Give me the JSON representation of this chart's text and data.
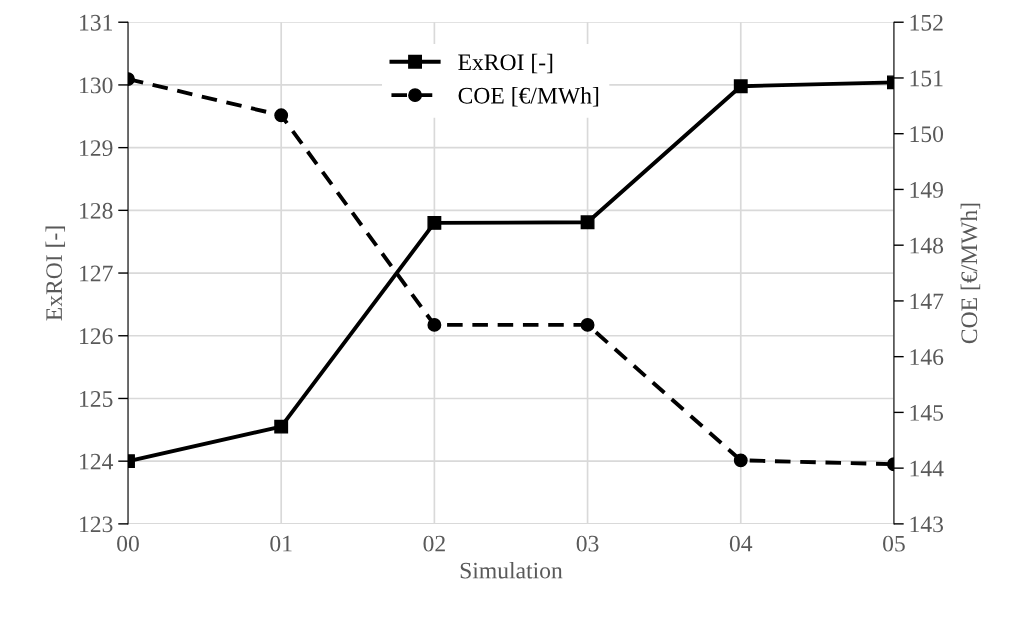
{
  "chart_data": {
    "type": "line",
    "xlabel": "Simulation",
    "ylabel": "ExROI [-]",
    "y2label": "COE [€/MWh]",
    "categories": [
      "00",
      "01",
      "02",
      "03",
      "04",
      "05"
    ],
    "series": [
      {
        "name": "ExROI [-]",
        "color": "#000000",
        "values": [
          124.0,
          124.55,
          127.8,
          127.81,
          129.98,
          130.04
        ],
        "marker": "square",
        "line_style": "solid"
      },
      {
        "name": "COE [€/MWh]",
        "color": "#000000",
        "values": [
          150.98,
          150.33,
          146.57,
          146.57,
          144.14,
          144.07
        ],
        "marker": "circle",
        "line_style": "dashed",
        "axis": "y2"
      }
    ],
    "ylim": [
      123,
      131
    ],
    "yticks": [
      123,
      124,
      125,
      126,
      127,
      128,
      129,
      130,
      131
    ],
    "y2lim": [
      143,
      152
    ],
    "y2ticks": [
      143,
      144,
      145,
      146,
      147,
      148,
      149,
      150,
      151,
      152
    ],
    "grid": true,
    "legend": "top"
  }
}
